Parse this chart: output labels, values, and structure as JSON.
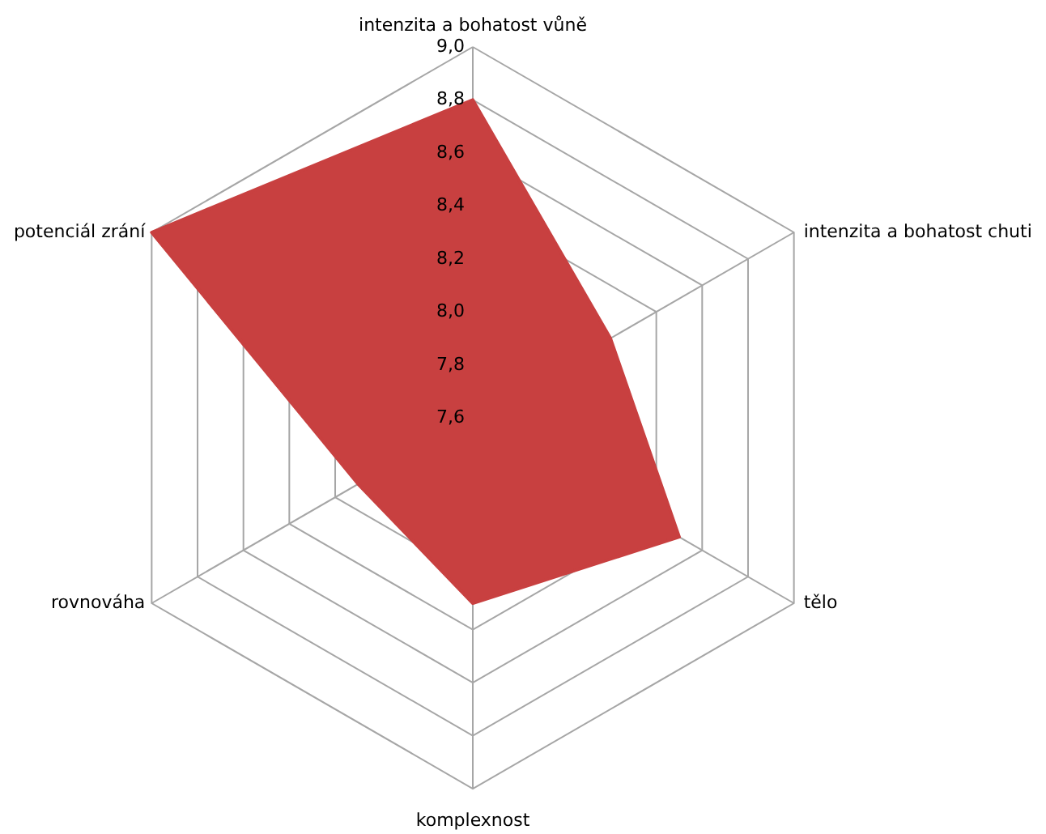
{
  "chart_data": {
    "type": "radar",
    "categories": [
      "intenzita a bohatost  vůně",
      "intenzita a bohatost chuti",
      "tělo",
      "komplexnost",
      "rovnováha",
      "potenciál zrání"
    ],
    "series": [
      {
        "color": "#c84040",
        "values": [
          8.8,
          8.2,
          8.5,
          8.3,
          8.1,
          9.0
        ]
      }
    ],
    "ylim": [
      7.6,
      9.0
    ],
    "yticks": [
      {
        "value": 7.6,
        "label": "7,6"
      },
      {
        "value": 7.8,
        "label": "7,8"
      },
      {
        "value": 8.0,
        "label": "8,0"
      },
      {
        "value": 8.2,
        "label": "8,2"
      },
      {
        "value": 8.4,
        "label": "8,4"
      },
      {
        "value": 8.6,
        "label": "8,6"
      },
      {
        "value": 8.8,
        "label": "8,8"
      },
      {
        "value": 9.0,
        "label": "9,0"
      }
    ],
    "grid": true
  }
}
